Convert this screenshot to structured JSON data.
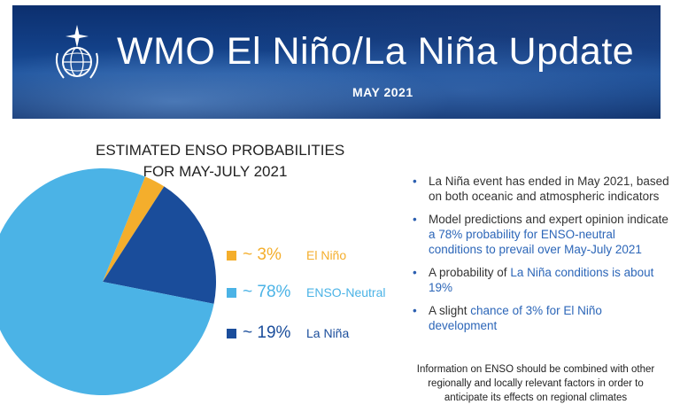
{
  "banner": {
    "title": "WMO El Niño/La Niña Update",
    "subtitle": "MAY 2021",
    "logo_icon": "wmo-emblem-icon"
  },
  "colors": {
    "el_nino": "#f4ae2c",
    "enso_neutral": "#4bb3e6",
    "la_nina": "#1a4d9b",
    "highlight": "#2c66b8"
  },
  "chart_data": {
    "type": "pie",
    "title": "ESTIMATED ENSO PROBABILITIES",
    "subtitle": "FOR MAY-JULY 2021",
    "slices": [
      {
        "label": "El Niño",
        "value": 3,
        "display": "~ 3%",
        "color": "#f4ae2c"
      },
      {
        "label": "ENSO-Neutral",
        "value": 78,
        "display": "~ 78%",
        "color": "#4bb3e6"
      },
      {
        "label": "La Niña",
        "value": 19,
        "display": "~ 19%",
        "color": "#1a4d9b"
      }
    ],
    "legend_placement": "right"
  },
  "bullets": [
    {
      "parts": [
        {
          "text": "La Niña event has ended in May 2021, based on both oceanic and atmospheric indicators",
          "hl": false
        }
      ]
    },
    {
      "parts": [
        {
          "text": "Model predictions and expert opinion indicate ",
          "hl": false
        },
        {
          "text": "a 78% probability for ENSO-neutral conditions to prevail over May-July 2021",
          "hl": true
        }
      ]
    },
    {
      "parts": [
        {
          "text": "A probability of ",
          "hl": false
        },
        {
          "text": "La Niña conditions is about 19%",
          "hl": true
        }
      ]
    },
    {
      "parts": [
        {
          "text": "A slight ",
          "hl": false
        },
        {
          "text": "chance of 3% for El Niño development",
          "hl": true
        }
      ]
    }
  ],
  "footnote": "Information on ENSO should be combined with other regionally and locally relevant factors in order to anticipate its effects on regional climates"
}
